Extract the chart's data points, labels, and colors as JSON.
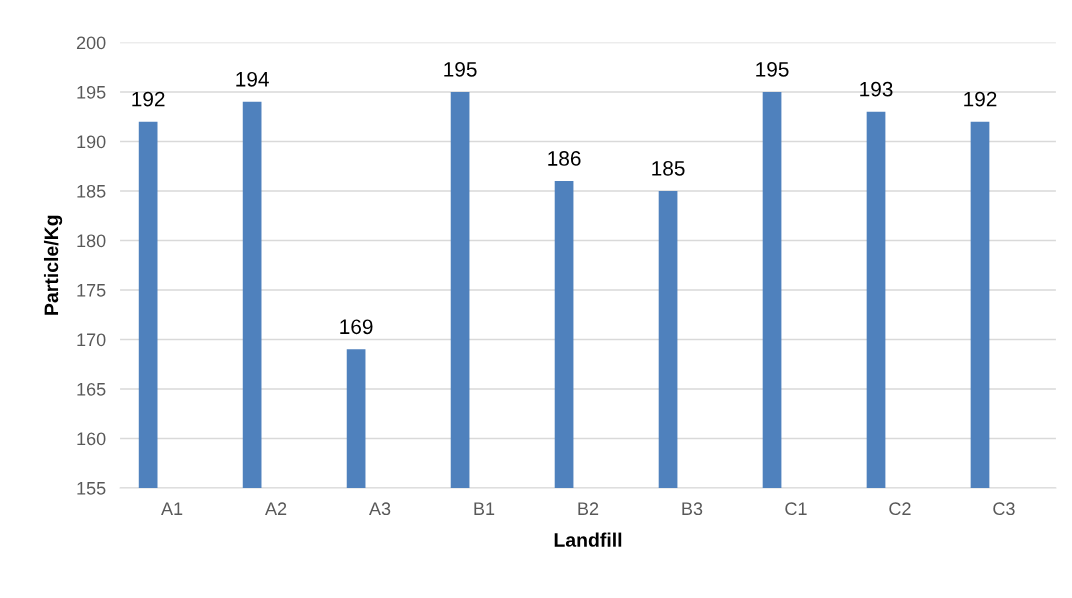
{
  "chart_data": {
    "type": "bar",
    "xlabel": "Landfill",
    "ylabel": "Particle/Kg",
    "categories": [
      "A1",
      "A2",
      "A3",
      "B1",
      "B2",
      "B3",
      "C1",
      "C2",
      "C3"
    ],
    "values": [
      192,
      194,
      169,
      195,
      186,
      185,
      195,
      193,
      192
    ],
    "color": "#4f81bd",
    "ylim": [
      155,
      200
    ],
    "yticks": [
      155,
      160,
      165,
      170,
      175,
      180,
      185,
      190,
      195,
      200
    ],
    "grid": "y",
    "data_labels": true
  }
}
